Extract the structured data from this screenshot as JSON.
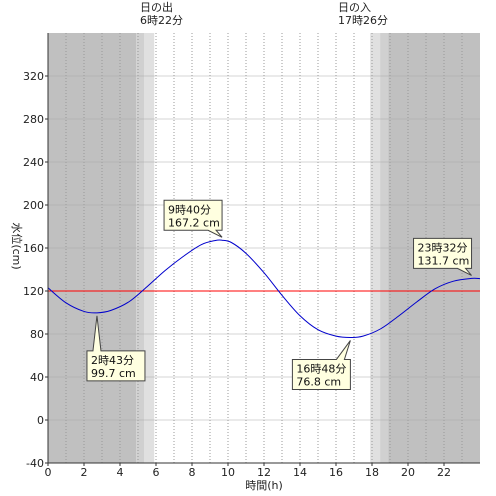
{
  "chart_data": {
    "type": "line",
    "xlabel": "時間(h)",
    "ylabel": "水位(cm)",
    "xlim": [
      0,
      24
    ],
    "ylim": [
      -40,
      360
    ],
    "x_ticks": [
      0,
      2,
      4,
      6,
      8,
      10,
      12,
      14,
      16,
      18,
      20,
      22
    ],
    "y_ticks": [
      -40,
      0,
      40,
      80,
      120,
      160,
      200,
      240,
      280,
      320
    ],
    "grid": {
      "vertical_dotted_every_hours": 1,
      "horizontal": true
    },
    "reference_line": {
      "value": 120,
      "color": "#ff0000"
    },
    "sunrise": {
      "title": "日の出",
      "time": "6時22分",
      "hour": 6.37
    },
    "sunset": {
      "title": "日の入",
      "time": "17時26分",
      "hour": 17.43
    },
    "night_shading": [
      {
        "from": 0,
        "to": 4.9,
        "shade": "#c0c0c0"
      },
      {
        "from": 4.9,
        "to": 5.35,
        "shade": "#d0d0d0"
      },
      {
        "from": 5.35,
        "to": 5.9,
        "shade": "#e0e0e0"
      },
      {
        "from": 17.9,
        "to": 18.45,
        "shade": "#e0e0e0"
      },
      {
        "from": 18.45,
        "to": 18.9,
        "shade": "#d0d0d0"
      },
      {
        "from": 18.9,
        "to": 24,
        "shade": "#c0c0c0"
      }
    ],
    "series": [
      {
        "color": "#0000cc",
        "x": [
          0,
          1,
          2,
          2.72,
          3.5,
          4.5,
          5.5,
          6.5,
          7.5,
          8.5,
          9.3,
          9.67,
          10.2,
          11,
          12,
          13,
          14,
          15,
          16,
          16.8,
          17.5,
          18.5,
          19.5,
          20.5,
          21.5,
          22.5,
          23.53,
          24
        ],
        "y": [
          123,
          109,
          101,
          99.7,
          102,
          110,
          124,
          139,
          152,
          163,
          167,
          167.2,
          165,
          155,
          137,
          116,
          97,
          84,
          78,
          76.8,
          78,
          85,
          97,
          110,
          122,
          129,
          131.7,
          131.5
        ]
      }
    ],
    "annotations": [
      {
        "time": "2時43分",
        "value": "99.7 cm",
        "x": 2.72,
        "y": 99.7
      },
      {
        "time": "9時40分",
        "value": "167.2 cm",
        "x": 9.67,
        "y": 167.2
      },
      {
        "time": "16時48分",
        "value": "76.8 cm",
        "x": 16.8,
        "y": 76.8
      },
      {
        "time": "23時32分",
        "value": "131.7 cm",
        "x": 23.53,
        "y": 131.7
      }
    ]
  }
}
